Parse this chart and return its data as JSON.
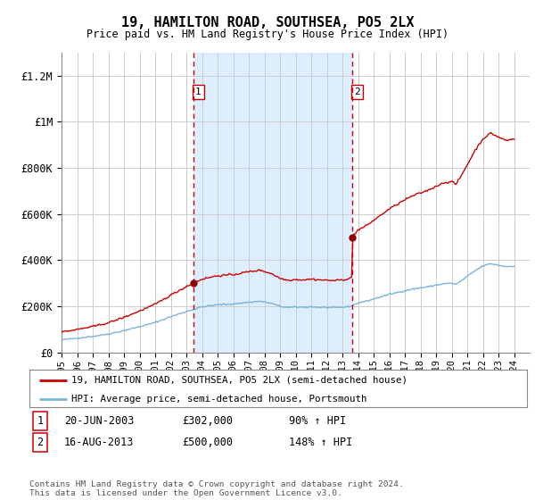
{
  "title": "19, HAMILTON ROAD, SOUTHSEA, PO5 2LX",
  "subtitle": "Price paid vs. HM Land Registry's House Price Index (HPI)",
  "footer": "Contains HM Land Registry data © Crown copyright and database right 2024.\nThis data is licensed under the Open Government Licence v3.0.",
  "legend_line1": "19, HAMILTON ROAD, SOUTHSEA, PO5 2LX (semi-detached house)",
  "legend_line2": "HPI: Average price, semi-detached house, Portsmouth",
  "sale1_label": "1",
  "sale1_date": "20-JUN-2003",
  "sale1_price": "£302,000",
  "sale1_hpi": "90% ↑ HPI",
  "sale1_year": 2003.46,
  "sale1_value": 302000,
  "sale2_label": "2",
  "sale2_date": "16-AUG-2013",
  "sale2_price": "£500,000",
  "sale2_hpi": "148% ↑ HPI",
  "sale2_year": 2013.62,
  "sale2_value": 500000,
  "hpi_color": "#7ab3d8",
  "price_color": "#cc0000",
  "sale_dot_color": "#8b0000",
  "vline_color": "#cc0000",
  "shade_color": "#ddeeff",
  "background_color": "#ffffff",
  "grid_color": "#cccccc",
  "ylim": [
    0,
    1300000
  ],
  "yticks": [
    0,
    200000,
    400000,
    600000,
    800000,
    1000000,
    1200000
  ],
  "ytick_labels": [
    "£0",
    "£200K",
    "£400K",
    "£600K",
    "£800K",
    "£1M",
    "£1.2M"
  ],
  "xlim_start": 1995.0,
  "xlim_end": 2024.99
}
